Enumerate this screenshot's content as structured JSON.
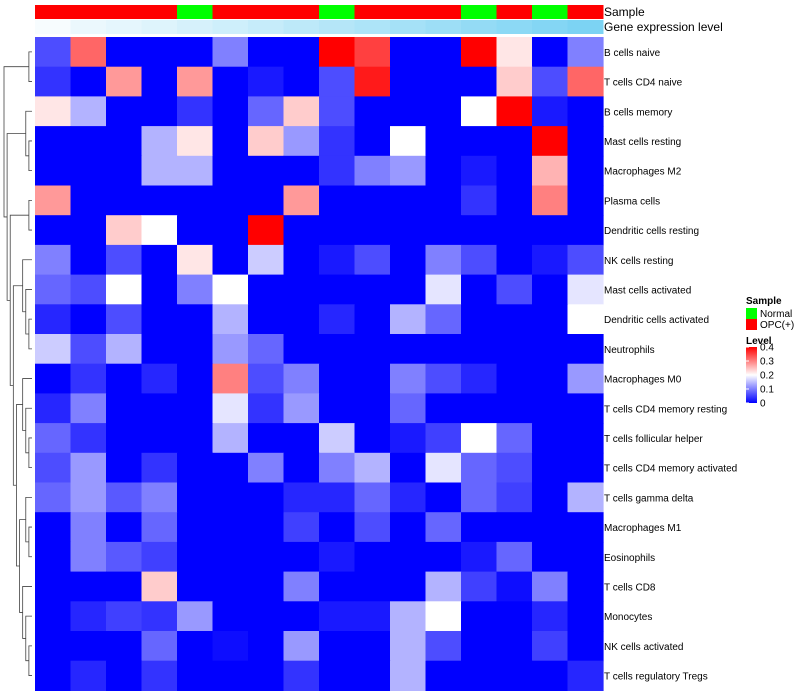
{
  "chart_data": {
    "type": "heatmap",
    "title": "",
    "annotation_tracks": [
      {
        "name": "Sample",
        "values": [
          "OPC(+)",
          "OPC(+)",
          "OPC(+)",
          "OPC(+)",
          "Normal",
          "OPC(+)",
          "OPC(+)",
          "OPC(+)",
          "Normal",
          "OPC(+)",
          "OPC(+)",
          "OPC(+)",
          "Normal",
          "OPC(+)",
          "Normal",
          "OPC(+)"
        ]
      },
      {
        "name": "Gene expression level",
        "values": [
          0.05,
          0.12,
          0.16,
          0.2,
          0.25,
          0.3,
          0.35,
          0.4,
          0.45,
          0.5,
          0.55,
          0.6,
          0.65,
          0.7,
          0.75,
          0.8
        ]
      }
    ],
    "rows": [
      "B cells naive",
      "T cells CD4 naive",
      "B cells memory",
      "Mast cells resting",
      "Macrophages M2",
      "Plasma cells",
      "Dendritic cells resting",
      "NK cells resting",
      "Mast cells activated",
      "Dendritic cells activated",
      "Neutrophils",
      "Macrophages M0",
      "T cells CD4 memory resting",
      "T cells follicular helper",
      "T cells CD4 memory activated",
      "T cells gamma delta",
      "Macrophages M1",
      "Eosinophils",
      "T cells CD8",
      "Monocytes",
      "NK cells activated",
      "T cells regulatory  Tregs"
    ],
    "values": [
      [
        0.06,
        0.32,
        0,
        0,
        0,
        0.1,
        0,
        0,
        0.4,
        0.35,
        0,
        0,
        0.4,
        0.22,
        0,
        0.1
      ],
      [
        0.04,
        0,
        0.28,
        0,
        0.28,
        0,
        0.02,
        0,
        0.06,
        0.38,
        0,
        0,
        0,
        0.24,
        0.06,
        0.32
      ],
      [
        0.22,
        0.14,
        0,
        0,
        0.04,
        0,
        0.08,
        0.24,
        0.06,
        0,
        0,
        0,
        0.2,
        0.4,
        0.02,
        0
      ],
      [
        0,
        0,
        0,
        0.14,
        0.22,
        0,
        0.24,
        0.12,
        0.04,
        0,
        0.2,
        0,
        0,
        0,
        0.4,
        0
      ],
      [
        0,
        0,
        0,
        0.14,
        0.14,
        0,
        0,
        0,
        0.04,
        0.1,
        0.12,
        0,
        0.02,
        0,
        0.26,
        0
      ],
      [
        0.28,
        0,
        0,
        0,
        0,
        0,
        0,
        0.28,
        0,
        0,
        0,
        0,
        0.04,
        0,
        0.3,
        0
      ],
      [
        0,
        0,
        0.24,
        0.2,
        0,
        0,
        0.4,
        0,
        0,
        0,
        0,
        0,
        0,
        0,
        0,
        0
      ],
      [
        0.1,
        0,
        0.06,
        0,
        0.22,
        0,
        0.16,
        0,
        0.02,
        0.06,
        0,
        0.1,
        0.06,
        0,
        0.02,
        0.06
      ],
      [
        0.08,
        0.06,
        0.2,
        0,
        0.1,
        0.2,
        0,
        0,
        0,
        0,
        0,
        0.18,
        0,
        0.06,
        0,
        0.18
      ],
      [
        0.03,
        0,
        0.06,
        0,
        0,
        0.14,
        0,
        0,
        0.03,
        0,
        0.14,
        0.08,
        0,
        0,
        0,
        0.2
      ],
      [
        0.16,
        0.06,
        0.14,
        0,
        0,
        0.12,
        0.08,
        0,
        0,
        0,
        0,
        0,
        0,
        0,
        0,
        0
      ],
      [
        0,
        0.04,
        0,
        0.03,
        0,
        0.3,
        0.06,
        0.1,
        0,
        0,
        0.1,
        0.06,
        0.03,
        0,
        0,
        0.12
      ],
      [
        0.03,
        0.1,
        0,
        0,
        0,
        0.18,
        0.04,
        0.12,
        0,
        0,
        0.08,
        0,
        0,
        0,
        0,
        0
      ],
      [
        0.08,
        0.04,
        0,
        0,
        0,
        0.14,
        0,
        0,
        0.16,
        0,
        0.02,
        0.05,
        0.2,
        0.08,
        0,
        0
      ],
      [
        0.06,
        0.12,
        0,
        0.04,
        0,
        0,
        0.1,
        0,
        0.1,
        0.14,
        0,
        0.18,
        0.08,
        0.06,
        0,
        0
      ],
      [
        0.08,
        0.12,
        0.07,
        0.1,
        0,
        0,
        0,
        0.03,
        0.03,
        0.08,
        0.03,
        0,
        0.08,
        0.05,
        0,
        0.14
      ],
      [
        0,
        0.1,
        0,
        0.08,
        0,
        0,
        0,
        0.05,
        0,
        0.06,
        0,
        0.08,
        0,
        0,
        0,
        0
      ],
      [
        0,
        0.1,
        0.07,
        0.05,
        0,
        0,
        0,
        0,
        0.02,
        0,
        0,
        0,
        0.02,
        0.08,
        0,
        0
      ],
      [
        0,
        0,
        0,
        0.24,
        0,
        0,
        0,
        0.1,
        0,
        0,
        0,
        0.14,
        0.05,
        0.01,
        0.1,
        0
      ],
      [
        0,
        0.03,
        0.05,
        0.04,
        0.12,
        0,
        0,
        0,
        0.02,
        0.02,
        0.14,
        0.2,
        0,
        0,
        0.03,
        0
      ],
      [
        0,
        0,
        0,
        0.08,
        0,
        0.01,
        0,
        0.12,
        0,
        0,
        0.14,
        0.06,
        0,
        0,
        0.05,
        0
      ],
      [
        0,
        0.03,
        0,
        0.04,
        0,
        0,
        0,
        0.04,
        0,
        0,
        0.14,
        0,
        0,
        0,
        0,
        0.03
      ]
    ],
    "color_scale": {
      "min": 0,
      "mid": 0.2,
      "max": 0.4,
      "low_color": "#0000ff",
      "mid_color": "#ffffff",
      "high_color": "#ff0000"
    },
    "legends": {
      "sample": {
        "title": "Sample",
        "items": [
          {
            "label": "Normal",
            "color": "#00ff00"
          },
          {
            "label": "OPC(+)",
            "color": "#ff0000"
          }
        ]
      },
      "level": {
        "title": "Level",
        "ticks": [
          {
            "label": "0.4",
            "value": 0.4
          },
          {
            "label": "0.3",
            "value": 0.3
          },
          {
            "label": "0.2",
            "value": 0.2
          },
          {
            "label": "0.1",
            "value": 0.1
          },
          {
            "label": "0",
            "value": 0
          }
        ]
      }
    },
    "annotation_colors": {
      "Normal": "#00ff00",
      "OPC(+)": "#ff0000",
      "expr_low": "#ffffff",
      "expr_high": "#5bc8f0"
    },
    "row_dendrogram": {
      "side": "left"
    }
  }
}
